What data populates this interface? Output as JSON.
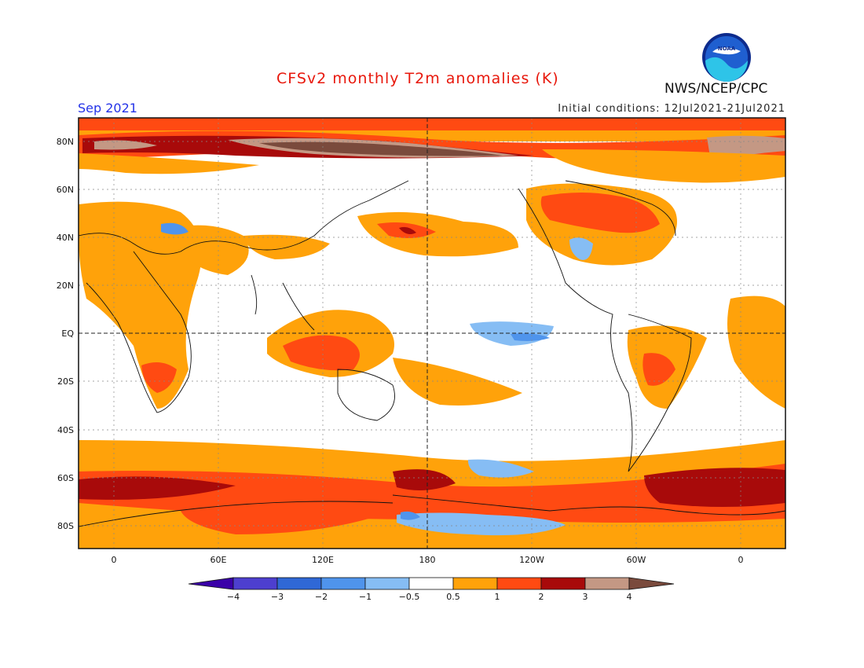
{
  "title": "CFSv2 monthly T2m anomalies (K)",
  "month": "Sep 2021",
  "initial_conditions": "Initial conditions: 12Jul2021-21Jul2021",
  "agency": "NWS/NCEP/CPC",
  "logo_text": "NOAA",
  "lat_ticks": [
    "80N",
    "60N",
    "40N",
    "20N",
    "EQ",
    "20S",
    "40S",
    "60S",
    "80S"
  ],
  "lon_ticks": [
    "0",
    "60E",
    "120E",
    "180",
    "120W",
    "60W",
    "0"
  ],
  "colorbar": {
    "labels": [
      "−4",
      "−3",
      "−2",
      "−1",
      "−0.5",
      "0.5",
      "1",
      "2",
      "3",
      "4"
    ],
    "colors": [
      "#3a00a8",
      "#4d3fcf",
      "#2f68d6",
      "#4f94ec",
      "#86bdf4",
      "#ffffff",
      "#ffa20a",
      "#ff4a12",
      "#a80a0a",
      "#c49884",
      "#7a4a3c"
    ]
  },
  "anomaly_colors": {
    "weak_warm": "#ffa20a",
    "warm": "#ff4a12",
    "strong_warm": "#a80a0a",
    "extreme_warm": "#c49884",
    "top_warm": "#7a4a3c",
    "weak_cool": "#86bdf4",
    "cool": "#4f94ec"
  }
}
